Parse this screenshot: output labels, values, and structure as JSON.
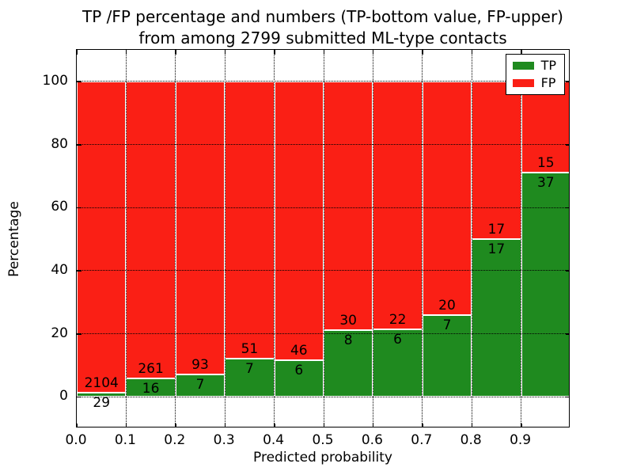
{
  "title": {
    "line1": "TP /FP percentage and numbers (TP-bottom value, FP-upper)",
    "line2": "from among 2799 submitted ML-type contacts"
  },
  "axes": {
    "xlabel": "Predicted probability",
    "ylabel": "Percentage"
  },
  "chart_data": {
    "type": "bar",
    "variant": "stacked-normalized-100pct",
    "title": "TP /FP percentage and numbers (TP-bottom value, FP-upper)\nfrom among 2799 submitted ML-type contacts",
    "xlabel": "Predicted probability",
    "ylabel": "Percentage",
    "total_contacts": 2799,
    "xlim": [
      0.0,
      1.0
    ],
    "ylim": [
      -10,
      110
    ],
    "grid": true,
    "bin_width": 0.1,
    "bin_starts": [
      0.0,
      0.1,
      0.2,
      0.3,
      0.4,
      0.5,
      0.6,
      0.7,
      0.8,
      0.9
    ],
    "x_tick_labels": [
      "0.0",
      "0.1",
      "0.2",
      "0.3",
      "0.4",
      "0.5",
      "0.6",
      "0.7",
      "0.8",
      "0.9"
    ],
    "y_tick_values": [
      0,
      20,
      40,
      60,
      80,
      100
    ],
    "y_tick_labels": [
      "0",
      "20",
      "40",
      "60",
      "80",
      "100"
    ],
    "series": [
      {
        "name": "TP",
        "color": "#1f8a1f",
        "values": [
          29,
          16,
          7,
          7,
          6,
          8,
          6,
          7,
          17,
          37
        ]
      },
      {
        "name": "FP",
        "color": "#fa1f15",
        "values": [
          2104,
          261,
          93,
          51,
          46,
          30,
          22,
          20,
          17,
          15
        ]
      }
    ],
    "tp_percent_per_bin": [
      1.36,
      5.78,
      7.0,
      12.07,
      11.54,
      21.05,
      21.43,
      25.93,
      50.0,
      71.15
    ],
    "legend": {
      "position": "upper-right",
      "entries": [
        {
          "label": "TP",
          "color": "#1f8a1f"
        },
        {
          "label": "FP",
          "color": "#fa1f15"
        }
      ]
    }
  }
}
